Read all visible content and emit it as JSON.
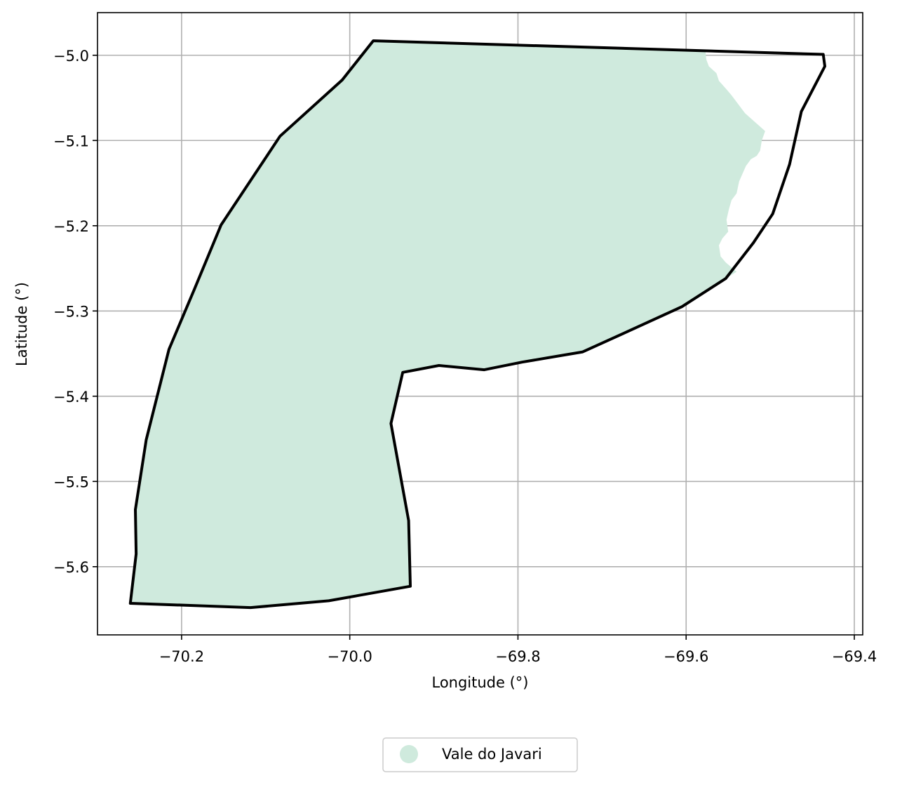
{
  "chart_data": {
    "type": "map",
    "xlabel": "Longitude (°)",
    "ylabel": "Latitude (°)",
    "xlim": [
      -70.3,
      -69.39
    ],
    "ylim": [
      -5.68,
      -4.95
    ],
    "grid": true,
    "x_ticks": [
      -70.2,
      -70.0,
      -69.8,
      -69.6,
      -69.4
    ],
    "y_ticks": [
      -5.0,
      -5.1,
      -5.2,
      -5.3,
      -5.4,
      -5.5,
      -5.6
    ],
    "x_tick_labels": [
      "−70.2",
      "−70.0",
      "−69.8",
      "−69.6",
      "−69.4"
    ],
    "y_tick_labels": [
      "−5.0",
      "−5.1",
      "−5.2",
      "−5.3",
      "−5.4",
      "−5.5",
      "−5.6"
    ],
    "legend": {
      "placement": "bottom-center",
      "entries": [
        {
          "label": "Vale do Javari",
          "color": "#cfeadd"
        }
      ]
    },
    "fill_color": "#cfeadd",
    "outline_color": "#000000",
    "outline": [
      [
        -69.972,
        -4.983
      ],
      [
        -69.437,
        -4.999
      ],
      [
        -69.435,
        -5.013
      ],
      [
        -69.463,
        -5.066
      ],
      [
        -69.477,
        -5.128
      ],
      [
        -69.497,
        -5.186
      ],
      [
        -69.52,
        -5.22
      ],
      [
        -69.553,
        -5.262
      ],
      [
        -69.605,
        -5.295
      ],
      [
        -69.676,
        -5.327
      ],
      [
        -69.723,
        -5.348
      ],
      [
        -69.795,
        -5.36
      ],
      [
        -69.84,
        -5.369
      ],
      [
        -69.894,
        -5.364
      ],
      [
        -69.937,
        -5.372
      ],
      [
        -69.951,
        -5.432
      ],
      [
        -69.93,
        -5.546
      ],
      [
        -69.928,
        -5.623
      ],
      [
        -70.025,
        -5.64
      ],
      [
        -70.118,
        -5.648
      ],
      [
        -70.261,
        -5.643
      ],
      [
        -70.254,
        -5.585
      ],
      [
        -70.255,
        -5.533
      ],
      [
        -70.242,
        -5.451
      ],
      [
        -70.215,
        -5.345
      ],
      [
        -70.185,
        -5.275
      ],
      [
        -70.153,
        -5.199
      ],
      [
        -70.083,
        -5.095
      ],
      [
        -70.009,
        -5.029
      ]
    ],
    "fill": [
      [
        -69.972,
        -4.983
      ],
      [
        -69.577,
        -4.995
      ],
      [
        -69.576,
        -5.005
      ],
      [
        -69.573,
        -5.013
      ],
      [
        -69.564,
        -5.021
      ],
      [
        -69.561,
        -5.03
      ],
      [
        -69.552,
        -5.04
      ],
      [
        -69.546,
        -5.047
      ],
      [
        -69.53,
        -5.068
      ],
      [
        -69.506,
        -5.089
      ],
      [
        -69.51,
        -5.1
      ],
      [
        -69.512,
        -5.112
      ],
      [
        -69.516,
        -5.118
      ],
      [
        -69.523,
        -5.122
      ],
      [
        -69.529,
        -5.13
      ],
      [
        -69.537,
        -5.148
      ],
      [
        -69.54,
        -5.162
      ],
      [
        -69.546,
        -5.17
      ],
      [
        -69.549,
        -5.18
      ],
      [
        -69.552,
        -5.193
      ],
      [
        -69.55,
        -5.207
      ],
      [
        -69.557,
        -5.215
      ],
      [
        -69.561,
        -5.223
      ],
      [
        -69.559,
        -5.236
      ],
      [
        -69.553,
        -5.243
      ],
      [
        -69.54,
        -5.254
      ],
      [
        -69.553,
        -5.262
      ],
      [
        -69.605,
        -5.295
      ],
      [
        -69.676,
        -5.327
      ],
      [
        -69.723,
        -5.348
      ],
      [
        -69.795,
        -5.36
      ],
      [
        -69.84,
        -5.369
      ],
      [
        -69.894,
        -5.364
      ],
      [
        -69.937,
        -5.372
      ],
      [
        -69.951,
        -5.432
      ],
      [
        -69.93,
        -5.546
      ],
      [
        -69.928,
        -5.623
      ],
      [
        -70.025,
        -5.64
      ],
      [
        -70.118,
        -5.648
      ],
      [
        -70.261,
        -5.643
      ],
      [
        -70.254,
        -5.585
      ],
      [
        -70.255,
        -5.533
      ],
      [
        -70.242,
        -5.451
      ],
      [
        -70.215,
        -5.345
      ],
      [
        -70.185,
        -5.275
      ],
      [
        -70.153,
        -5.199
      ],
      [
        -70.083,
        -5.095
      ],
      [
        -70.009,
        -5.029
      ]
    ]
  }
}
